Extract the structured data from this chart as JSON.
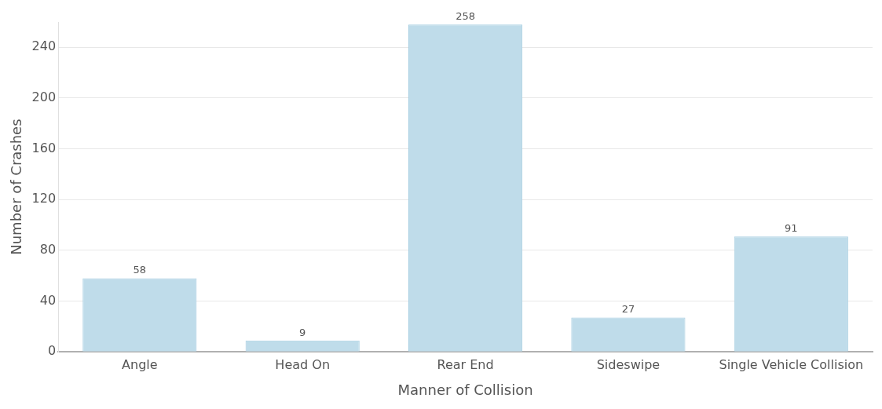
{
  "chart_data": {
    "type": "bar",
    "xlabel": "Manner of Collision",
    "ylabel": "Number of Crashes",
    "categories": [
      "Angle",
      "Head On",
      "Rear End",
      "Sideswipe",
      "Single Vehicle Collision"
    ],
    "values": [
      58,
      9,
      258,
      27,
      91
    ],
    "color": "#bfdcea",
    "ylim": [
      0,
      260
    ],
    "yticks": [
      0,
      40,
      80,
      120,
      160,
      200,
      240
    ],
    "grid": "y",
    "data_labels": true,
    "legend": false
  }
}
